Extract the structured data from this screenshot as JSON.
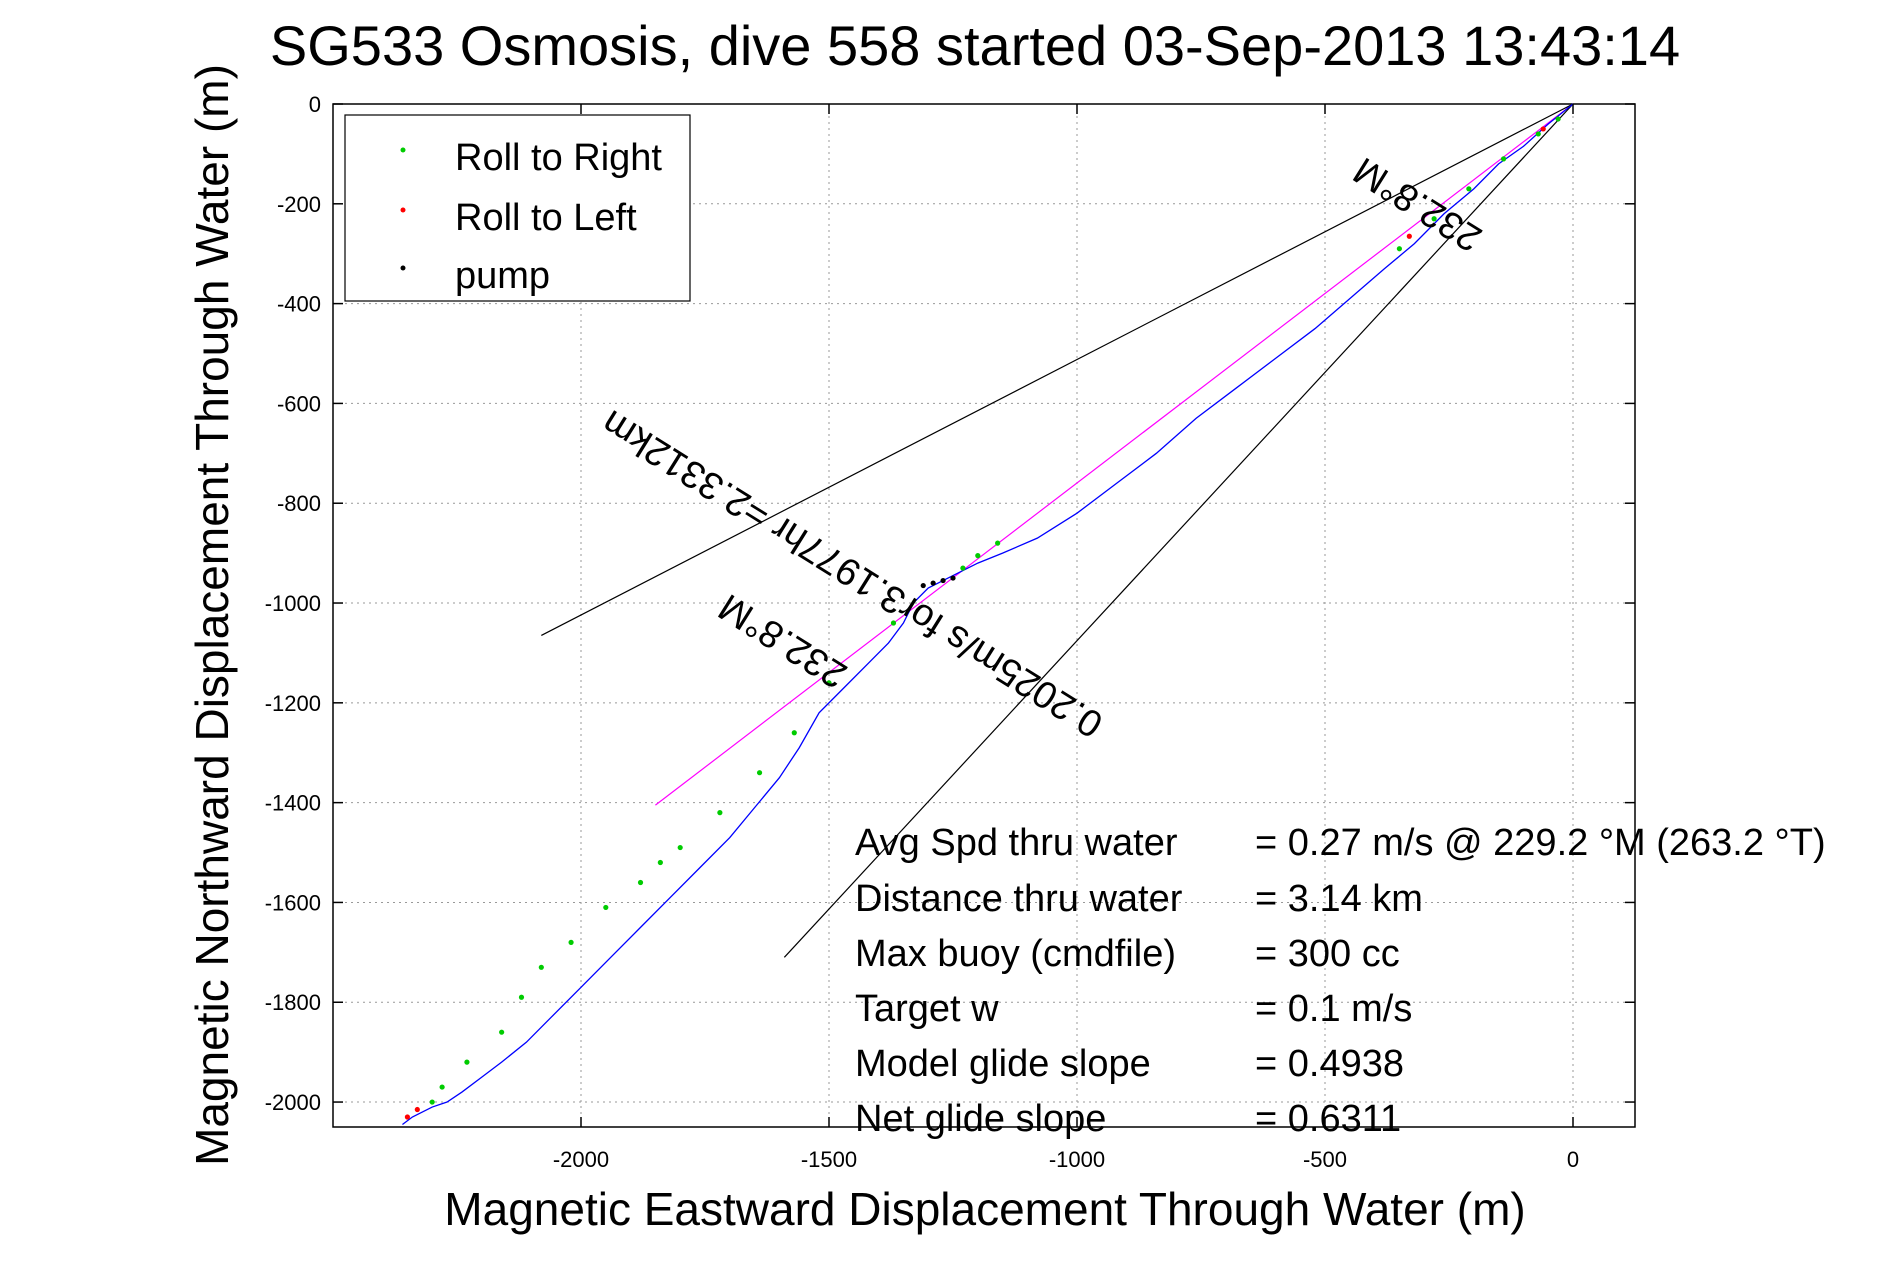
{
  "chart_data": {
    "type": "line",
    "title": "SG533 Osmosis, dive 558 started 03-Sep-2013 13:43:14",
    "xlabel": "Magnetic Eastward Displacement Through Water (m)",
    "ylabel": "Magnetic Northward Displacement Through Water (m)",
    "xlim": [
      -2500,
      125
    ],
    "ylim": [
      -2050,
      0
    ],
    "xticks": [
      -2000,
      -1500,
      -1000,
      -500,
      0
    ],
    "xtick_labels": [
      "-2000",
      "-1500",
      "-1000",
      "-500",
      "0"
    ],
    "yticks": [
      0,
      -200,
      -400,
      -600,
      -800,
      -1000,
      -1200,
      -1400,
      -1600,
      -1800,
      -2000
    ],
    "ytick_labels": [
      "0",
      "-200",
      "-400",
      "-600",
      "-800",
      "-1000",
      "-1200",
      "-1400",
      "-1600",
      "-1800",
      "-2000"
    ],
    "grid": true,
    "legend_position": "top-left",
    "legend": [
      {
        "label": "Roll to Right",
        "color": "#00cc00"
      },
      {
        "label": "Roll to Left",
        "color": "#ff0000"
      },
      {
        "label": "pump",
        "color": "#000000"
      }
    ],
    "track": {
      "color": "#0000ff",
      "x": [
        0,
        -50,
        -100,
        -150,
        -200,
        -260,
        -320,
        -380,
        -450,
        -520,
        -600,
        -680,
        -760,
        -840,
        -920,
        -1000,
        -1080,
        -1150,
        -1200,
        -1260,
        -1300,
        -1330,
        -1350,
        -1380,
        -1420,
        -1470,
        -1520,
        -1560,
        -1600,
        -1650,
        -1700,
        -1760,
        -1820,
        -1880,
        -1940,
        -2000,
        -2060,
        -2110,
        -2160,
        -2200,
        -2240,
        -2270,
        -2300,
        -2320,
        -2340,
        -2360
      ],
      "y": [
        0,
        -40,
        -85,
        -120,
        -170,
        -220,
        -280,
        -330,
        -390,
        -450,
        -510,
        -570,
        -630,
        -700,
        -760,
        -820,
        -870,
        -900,
        -920,
        -950,
        -970,
        -1000,
        -1040,
        -1080,
        -1120,
        -1170,
        -1220,
        -1290,
        -1350,
        -1410,
        -1470,
        -1530,
        -1590,
        -1650,
        -1710,
        -1770,
        -1830,
        -1880,
        -1920,
        -1950,
        -1980,
        -2000,
        -2010,
        -2020,
        -2030,
        -2045
      ]
    },
    "roll_right_points": {
      "x": [
        -30,
        -70,
        -140,
        -210,
        -280,
        -350,
        -1160,
        -1200,
        -1230,
        -1370,
        -1500,
        -1570,
        -1640,
        -1720,
        -1800,
        -1840,
        -1880,
        -1950,
        -2020,
        -2080,
        -2120,
        -2160,
        -2230,
        -2280,
        -2300
      ],
      "y": [
        -30,
        -60,
        -110,
        -170,
        -230,
        -290,
        -880,
        -905,
        -930,
        -1040,
        -1160,
        -1260,
        -1340,
        -1420,
        -1490,
        -1520,
        -1560,
        -1610,
        -1680,
        -1730,
        -1790,
        -1860,
        -1920,
        -1970,
        -2000
      ]
    },
    "roll_left_points": {
      "x": [
        -60,
        -330,
        -2330,
        -2350
      ],
      "y": [
        -50,
        -265,
        -2015,
        -2030
      ]
    },
    "pump_points": {
      "x": [
        -1250,
        -1270,
        -1290,
        -1310
      ],
      "y": [
        -950,
        -955,
        -960,
        -965
      ]
    },
    "reference_lines": [
      {
        "name": "heading",
        "color": "#ff00ff",
        "x": [
          0,
          -1850
        ],
        "y": [
          0,
          -1405
        ]
      },
      {
        "name": "bound-1",
        "color": "#000000",
        "x": [
          0,
          -2080
        ],
        "y": [
          0,
          -1065
        ]
      },
      {
        "name": "bound-2",
        "color": "#000000",
        "x": [
          0,
          -1590
        ],
        "y": [
          0,
          -1710
        ]
      }
    ],
    "annotations": [
      {
        "text": "232.8°M",
        "x": -1580,
        "y": -1055,
        "angle_deg": 212
      },
      {
        "text": "0.2025m/s for3.1977hr =2.3312km",
        "x": -1440,
        "y": -920,
        "angle_deg": 212
      },
      {
        "text": "232.8°M",
        "x": -300,
        "y": -180,
        "angle_deg": 212
      }
    ],
    "stats": [
      {
        "label": "Avg Spd thru water",
        "value": "=  0.27 m/s @ 229.2 °M (263.2 °T)"
      },
      {
        "label": "Distance thru water",
        "value": "=  3.14 km"
      },
      {
        "label": "Max buoy (cmdfile)",
        "value": "= 300 cc"
      },
      {
        "label": "Target w",
        "value": "= 0.1 m/s"
      },
      {
        "label": "Model glide slope",
        "value": "= 0.4938"
      },
      {
        "label": "Net glide slope",
        "value": "= 0.6311"
      }
    ]
  }
}
